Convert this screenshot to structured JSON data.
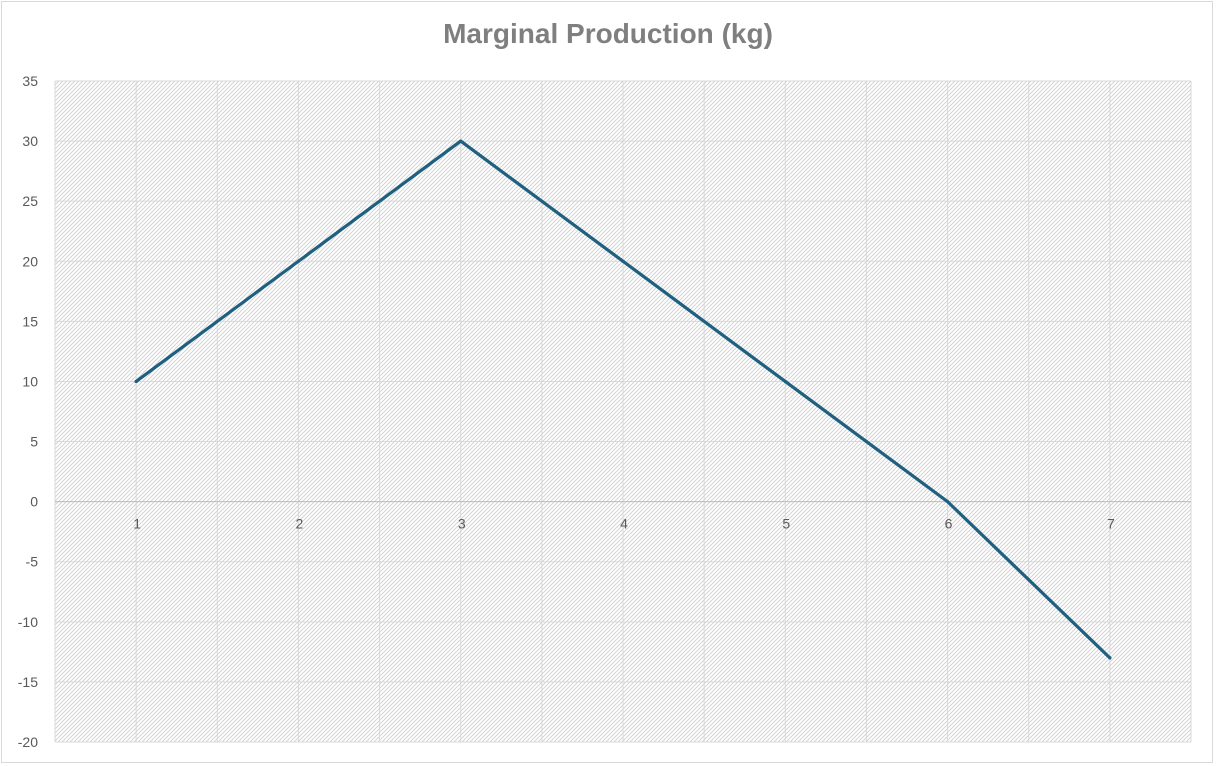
{
  "chart_data": {
    "type": "line",
    "title": "Marginal Production (kg)",
    "xlabel": "",
    "ylabel": "",
    "categories": [
      "1",
      "2",
      "3",
      "4",
      "5",
      "6",
      "7"
    ],
    "series": [
      {
        "values": [
          10,
          20,
          30,
          20,
          10,
          0,
          -13
        ]
      }
    ],
    "ylim": [
      -20,
      35
    ],
    "y_ticks": [
      "35",
      "30",
      "25",
      "20",
      "15",
      "10",
      "5",
      "0",
      "-5",
      "-10",
      "-15",
      "-20"
    ],
    "grid": true,
    "legend": "none",
    "colors": {
      "line": "#1f5f7f",
      "grid": "#d9d9d9",
      "text": "#595959",
      "title": "#7f7f7f"
    }
  }
}
